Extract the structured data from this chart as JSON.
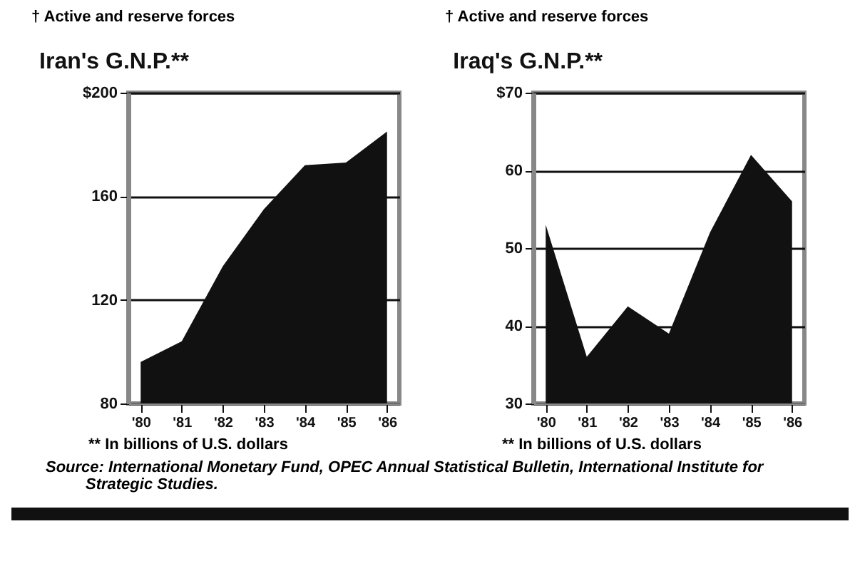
{
  "chart_data": [
    {
      "type": "area",
      "title": "Iran's G.N.P.**",
      "categories": [
        "'80",
        "'81",
        "'82",
        "'83",
        "'84",
        "'85",
        "'86"
      ],
      "series": [
        {
          "color": "#111111",
          "values": [
            96,
            104,
            133,
            155,
            172,
            173,
            185
          ]
        }
      ],
      "ylim": [
        80,
        200
      ],
      "yticks": [
        {
          "value": 80,
          "label": "80"
        },
        {
          "value": 120,
          "label": "120"
        },
        {
          "value": 160,
          "label": "160"
        },
        {
          "value": 200,
          "label": "$200"
        }
      ],
      "grid": "y",
      "annotations": [
        "† Active and reserve forces",
        "** In billions of U.S. dollars"
      ]
    },
    {
      "type": "area",
      "title": "Iraq's G.N.P.**",
      "categories": [
        "'80",
        "'81",
        "'82",
        "'83",
        "'84",
        "'85",
        "'86"
      ],
      "series": [
        {
          "color": "#111111",
          "values": [
            53,
            36,
            42.5,
            39,
            52,
            62,
            56
          ]
        }
      ],
      "ylim": [
        30,
        70
      ],
      "yticks": [
        {
          "value": 30,
          "label": "30"
        },
        {
          "value": 40,
          "label": "40"
        },
        {
          "value": 50,
          "label": "50"
        },
        {
          "value": 60,
          "label": "60"
        },
        {
          "value": 70,
          "label": "$70"
        }
      ],
      "grid": "y",
      "annotations": [
        "† Active and reserve forces",
        "** In billions of U.S. dollars",
        "Source: International Monetary Fund, OPEC Annual Statistical Bulletin, International Institute for Strategic Studies."
      ]
    }
  ]
}
